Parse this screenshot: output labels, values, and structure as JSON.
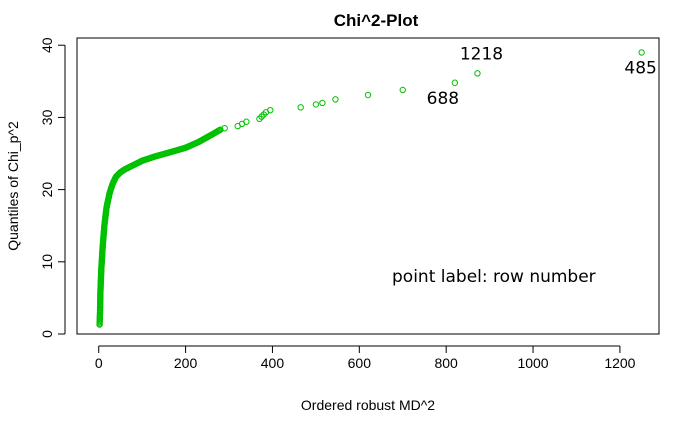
{
  "chart_data": {
    "type": "scatter",
    "title": "Chi^2-Plot",
    "xlabel": "Ordered robust MD^2",
    "ylabel": "Quantiles of Chi_p^2",
    "xlim": [
      -50,
      1290
    ],
    "ylim": [
      0,
      41
    ],
    "xticks": [
      0,
      200,
      400,
      600,
      800,
      1000,
      1200
    ],
    "yticks": [
      0,
      10,
      20,
      30,
      40
    ],
    "point_color": "#00c000",
    "grid": false,
    "legend": "none",
    "annotation": "point label: row number",
    "point_labels": [
      {
        "label": "1218",
        "x": 872,
        "y": 36.1
      },
      {
        "label": "688",
        "x": 820,
        "y": 34.8
      },
      {
        "label": "485",
        "x": 1250,
        "y": 39.0
      }
    ],
    "curve_anchors": [
      [
        2,
        1.3
      ],
      [
        3,
        3
      ],
      [
        4,
        6
      ],
      [
        6,
        9
      ],
      [
        9,
        12
      ],
      [
        13,
        15
      ],
      [
        18,
        17.5
      ],
      [
        25,
        19.5
      ],
      [
        32,
        20.8
      ],
      [
        40,
        21.8
      ],
      [
        50,
        22.4
      ],
      [
        60,
        22.8
      ],
      [
        80,
        23.4
      ],
      [
        100,
        24.0
      ],
      [
        130,
        24.6
      ],
      [
        160,
        25.1
      ],
      [
        200,
        25.8
      ],
      [
        230,
        26.6
      ],
      [
        260,
        27.6
      ],
      [
        280,
        28.3
      ]
    ],
    "sparse_points": [
      [
        290,
        28.5
      ],
      [
        320,
        28.8
      ],
      [
        330,
        29.1
      ],
      [
        340,
        29.4
      ],
      [
        370,
        29.8
      ],
      [
        375,
        30.1
      ],
      [
        380,
        30.4
      ],
      [
        385,
        30.7
      ],
      [
        395,
        31.0
      ],
      [
        465,
        31.4
      ],
      [
        500,
        31.8
      ],
      [
        515,
        32.0
      ],
      [
        545,
        32.5
      ],
      [
        620,
        33.1
      ],
      [
        700,
        33.8
      ],
      [
        820,
        34.8
      ],
      [
        872,
        36.1
      ],
      [
        1250,
        39.0
      ]
    ]
  }
}
